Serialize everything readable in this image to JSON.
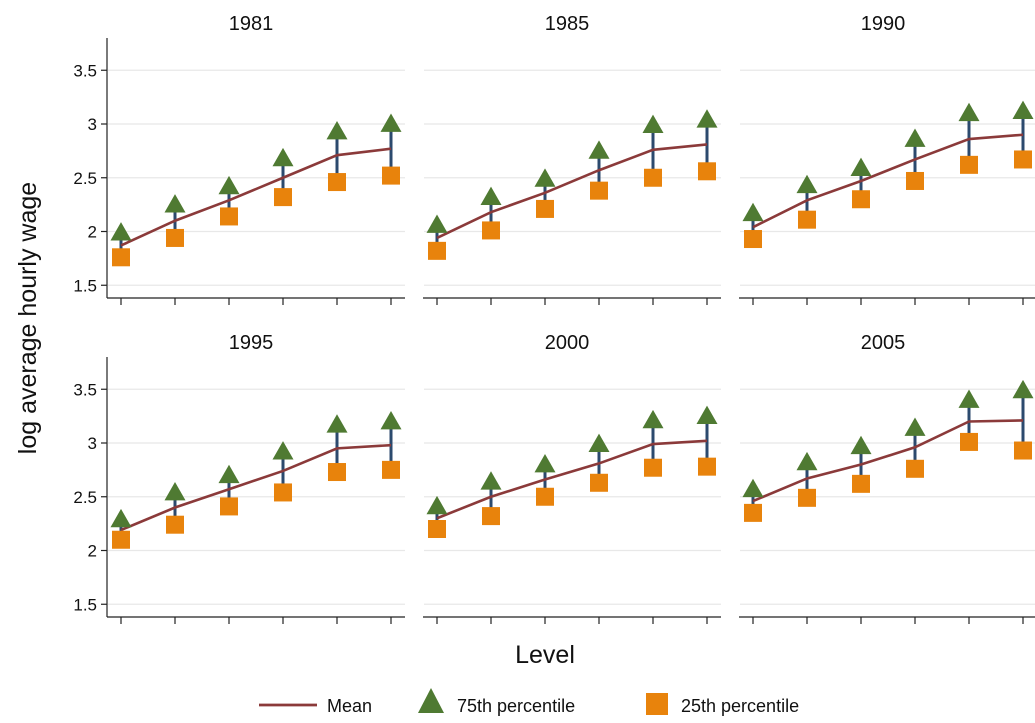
{
  "chart_data": {
    "type": "line",
    "ylabel": "log average hourly wage",
    "xlabel": "Level",
    "ylim": [
      1.4,
      3.8
    ],
    "yticks": [
      1.5,
      2,
      2.5,
      3,
      3.5
    ],
    "ytick_labels": [
      "1.5",
      "2",
      "2.5",
      "3",
      "3.5"
    ],
    "grid": true,
    "legend": {
      "position": "bottom",
      "items": [
        {
          "label": "Mean",
          "marker": "line",
          "color": "#8b3a3a"
        },
        {
          "label": "75th percentile",
          "marker": "triangle",
          "color": "#4f7a32"
        },
        {
          "label": "25th percentile",
          "marker": "square",
          "color": "#e8830c"
        }
      ]
    },
    "colors": {
      "mean": "#8b3a3a",
      "p75": "#4f7a32",
      "p25": "#e8830c",
      "range": "#2c4a6e",
      "grid": "#e8e8e8"
    },
    "x": [
      1,
      2,
      3,
      4,
      5,
      6
    ],
    "panels": [
      {
        "title": "1981",
        "mean": [
          1.87,
          2.1,
          2.29,
          2.5,
          2.71,
          2.77
        ],
        "p75": [
          1.99,
          2.25,
          2.42,
          2.68,
          2.93,
          3.0
        ],
        "p25": [
          1.76,
          1.94,
          2.14,
          2.32,
          2.46,
          2.52
        ]
      },
      {
        "title": "1985",
        "mean": [
          1.94,
          2.18,
          2.36,
          2.57,
          2.76,
          2.81
        ],
        "p75": [
          2.06,
          2.32,
          2.49,
          2.75,
          2.99,
          3.04
        ],
        "p25": [
          1.82,
          2.01,
          2.21,
          2.38,
          2.5,
          2.56
        ]
      },
      {
        "title": "1990",
        "mean": [
          2.04,
          2.29,
          2.47,
          2.67,
          2.86,
          2.9
        ],
        "p75": [
          2.17,
          2.43,
          2.59,
          2.86,
          3.1,
          3.12
        ],
        "p25": [
          1.93,
          2.11,
          2.3,
          2.47,
          2.62,
          2.67
        ]
      },
      {
        "title": "1995",
        "mean": [
          2.19,
          2.4,
          2.57,
          2.74,
          2.95,
          2.98
        ],
        "p75": [
          2.29,
          2.54,
          2.7,
          2.92,
          3.17,
          3.2
        ],
        "p25": [
          2.1,
          2.24,
          2.41,
          2.54,
          2.73,
          2.75
        ]
      },
      {
        "title": "2000",
        "mean": [
          2.3,
          2.5,
          2.66,
          2.81,
          2.99,
          3.02
        ],
        "p75": [
          2.41,
          2.64,
          2.8,
          2.99,
          3.21,
          3.25
        ],
        "p25": [
          2.2,
          2.32,
          2.5,
          2.63,
          2.77,
          2.78
        ]
      },
      {
        "title": "2005",
        "mean": [
          2.46,
          2.67,
          2.8,
          2.96,
          3.2,
          3.21
        ],
        "p75": [
          2.57,
          2.82,
          2.97,
          3.14,
          3.4,
          3.49
        ],
        "p25": [
          2.35,
          2.49,
          2.62,
          2.76,
          3.01,
          2.93
        ]
      }
    ]
  }
}
